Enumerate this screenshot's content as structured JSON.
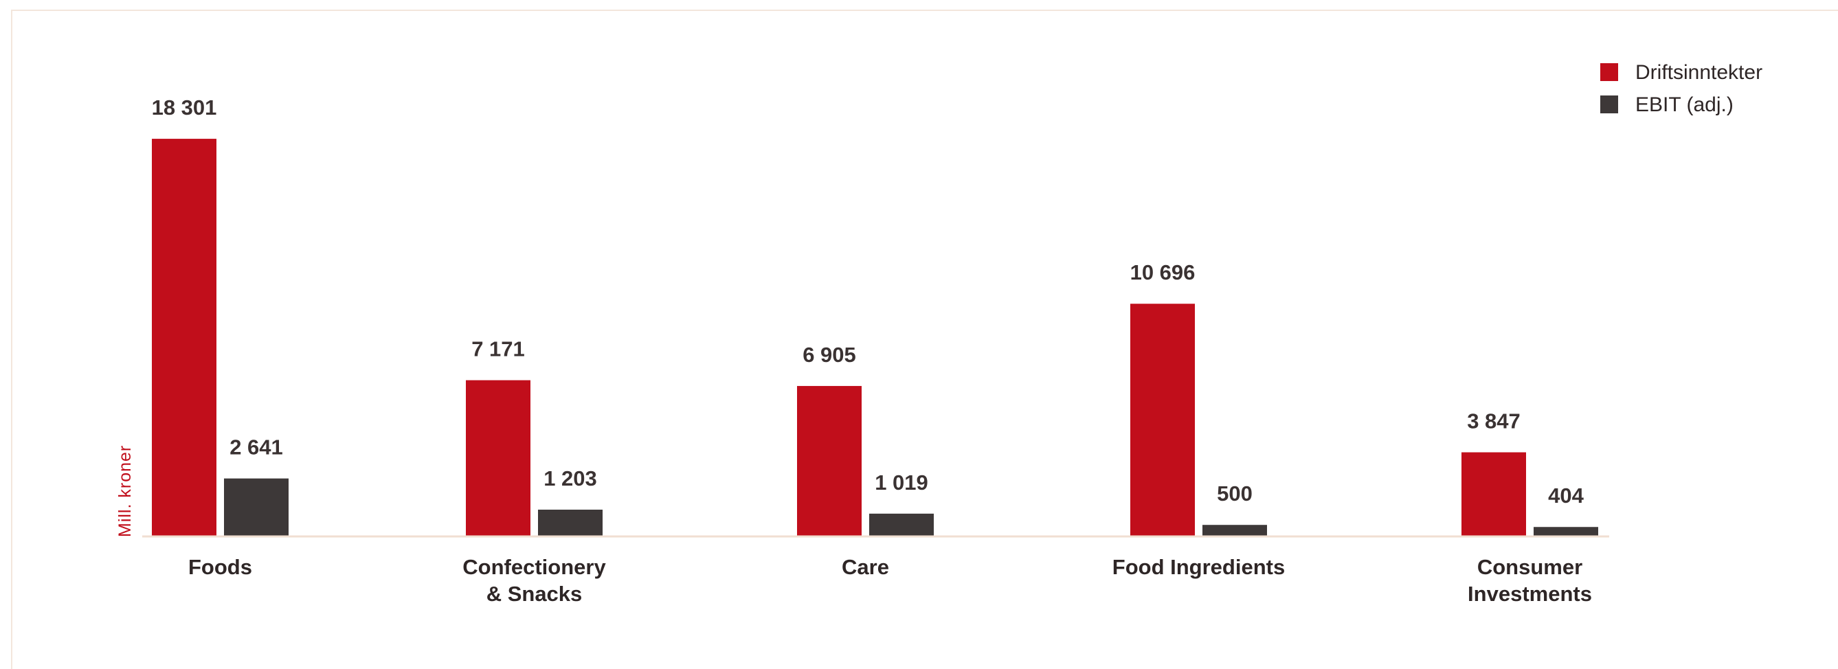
{
  "colors": {
    "revenue": "#c10e1b",
    "ebit": "#3d3838",
    "axis": "#f1dfd2",
    "text": "#2e2626"
  },
  "chart_data": {
    "type": "bar",
    "ylabel": "Mill.  kroner",
    "categories": [
      [
        "Foods"
      ],
      [
        "Confectionery",
        "& Snacks"
      ],
      [
        "Care"
      ],
      [
        "Food Ingredients"
      ],
      [
        "Consumer",
        "Investments"
      ]
    ],
    "series": [
      {
        "name": "Driftsinntekter",
        "values": [
          18301,
          7171,
          6905,
          10696,
          3847
        ],
        "labels": [
          "18 301",
          "7 171",
          "6 905",
          "10 696",
          "3 847"
        ]
      },
      {
        "name": "EBIT (adj.)",
        "values": [
          2641,
          1203,
          1019,
          500,
          404
        ],
        "labels": [
          "2 641",
          "1 203",
          "1 019",
          "500",
          "404"
        ]
      }
    ],
    "ylim": [
      0,
      19000
    ],
    "grid": false,
    "legend": "top-right"
  }
}
